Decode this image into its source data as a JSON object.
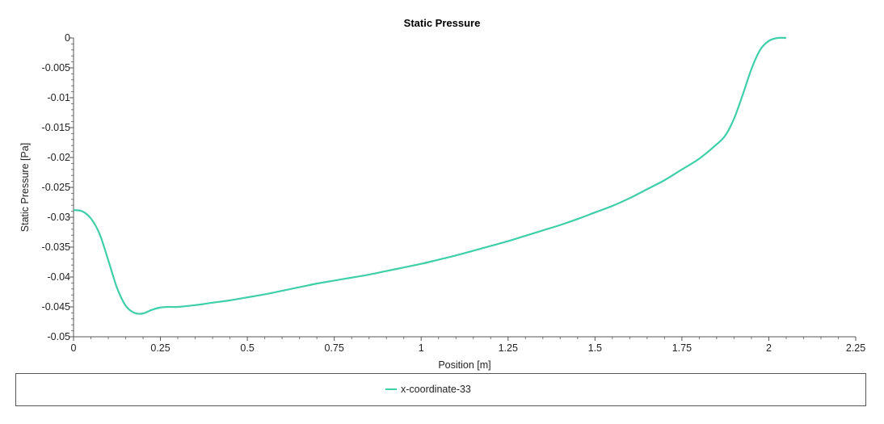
{
  "chart_data": {
    "type": "line",
    "title": "Static Pressure",
    "xlabel": "Position [m]",
    "ylabel": "Static Pressure [Pa]",
    "xlim": [
      0,
      2.25
    ],
    "ylim": [
      -0.05,
      0
    ],
    "x_ticks": [
      "0",
      "0.25",
      "0.5",
      "0.75",
      "1",
      "1.25",
      "1.5",
      "1.75",
      "2",
      "2.25"
    ],
    "x_tick_values": [
      0,
      0.25,
      0.5,
      0.75,
      1,
      1.25,
      1.5,
      1.75,
      2,
      2.25
    ],
    "y_ticks": [
      "0",
      "-0.005",
      "-0.01",
      "-0.015",
      "-0.02",
      "-0.025",
      "-0.03",
      "-0.035",
      "-0.04",
      "-0.045",
      "-0.05"
    ],
    "y_tick_values": [
      0,
      -0.005,
      -0.01,
      -0.015,
      -0.02,
      -0.025,
      -0.03,
      -0.035,
      -0.04,
      -0.045,
      -0.05
    ],
    "grid": false,
    "legend_position": "bottom",
    "series": [
      {
        "name": "x-coordinate-33",
        "color": "#3fcfa9",
        "x": [
          0,
          0.025,
          0.05,
          0.075,
          0.1,
          0.125,
          0.15,
          0.175,
          0.2,
          0.225,
          0.25,
          0.275,
          0.3,
          0.35,
          0.4,
          0.45,
          0.5,
          0.55,
          0.6,
          0.65,
          0.7,
          0.75,
          0.8,
          0.85,
          0.9,
          0.95,
          1.0,
          1.05,
          1.1,
          1.15,
          1.2,
          1.25,
          1.3,
          1.35,
          1.4,
          1.45,
          1.5,
          1.55,
          1.6,
          1.65,
          1.7,
          1.75,
          1.8,
          1.85,
          1.875,
          1.9,
          1.925,
          1.95,
          1.975,
          2.0,
          2.025,
          2.05
        ],
        "y": [
          -0.0288,
          -0.029,
          -0.0302,
          -0.0328,
          -0.0372,
          -0.0418,
          -0.0448,
          -0.046,
          -0.0461,
          -0.0455,
          -0.0451,
          -0.045,
          -0.045,
          -0.0447,
          -0.0443,
          -0.0439,
          -0.0434,
          -0.0429,
          -0.0423,
          -0.0417,
          -0.0411,
          -0.0406,
          -0.0401,
          -0.0396,
          -0.039,
          -0.0384,
          -0.0378,
          -0.0371,
          -0.0364,
          -0.0356,
          -0.0348,
          -0.034,
          -0.0331,
          -0.0322,
          -0.0313,
          -0.0303,
          -0.0292,
          -0.0281,
          -0.0268,
          -0.0253,
          -0.0238,
          -0.022,
          -0.0202,
          -0.0178,
          -0.0163,
          -0.0135,
          -0.0095,
          -0.0052,
          -0.002,
          -0.0005,
          0,
          0
        ]
      }
    ]
  }
}
